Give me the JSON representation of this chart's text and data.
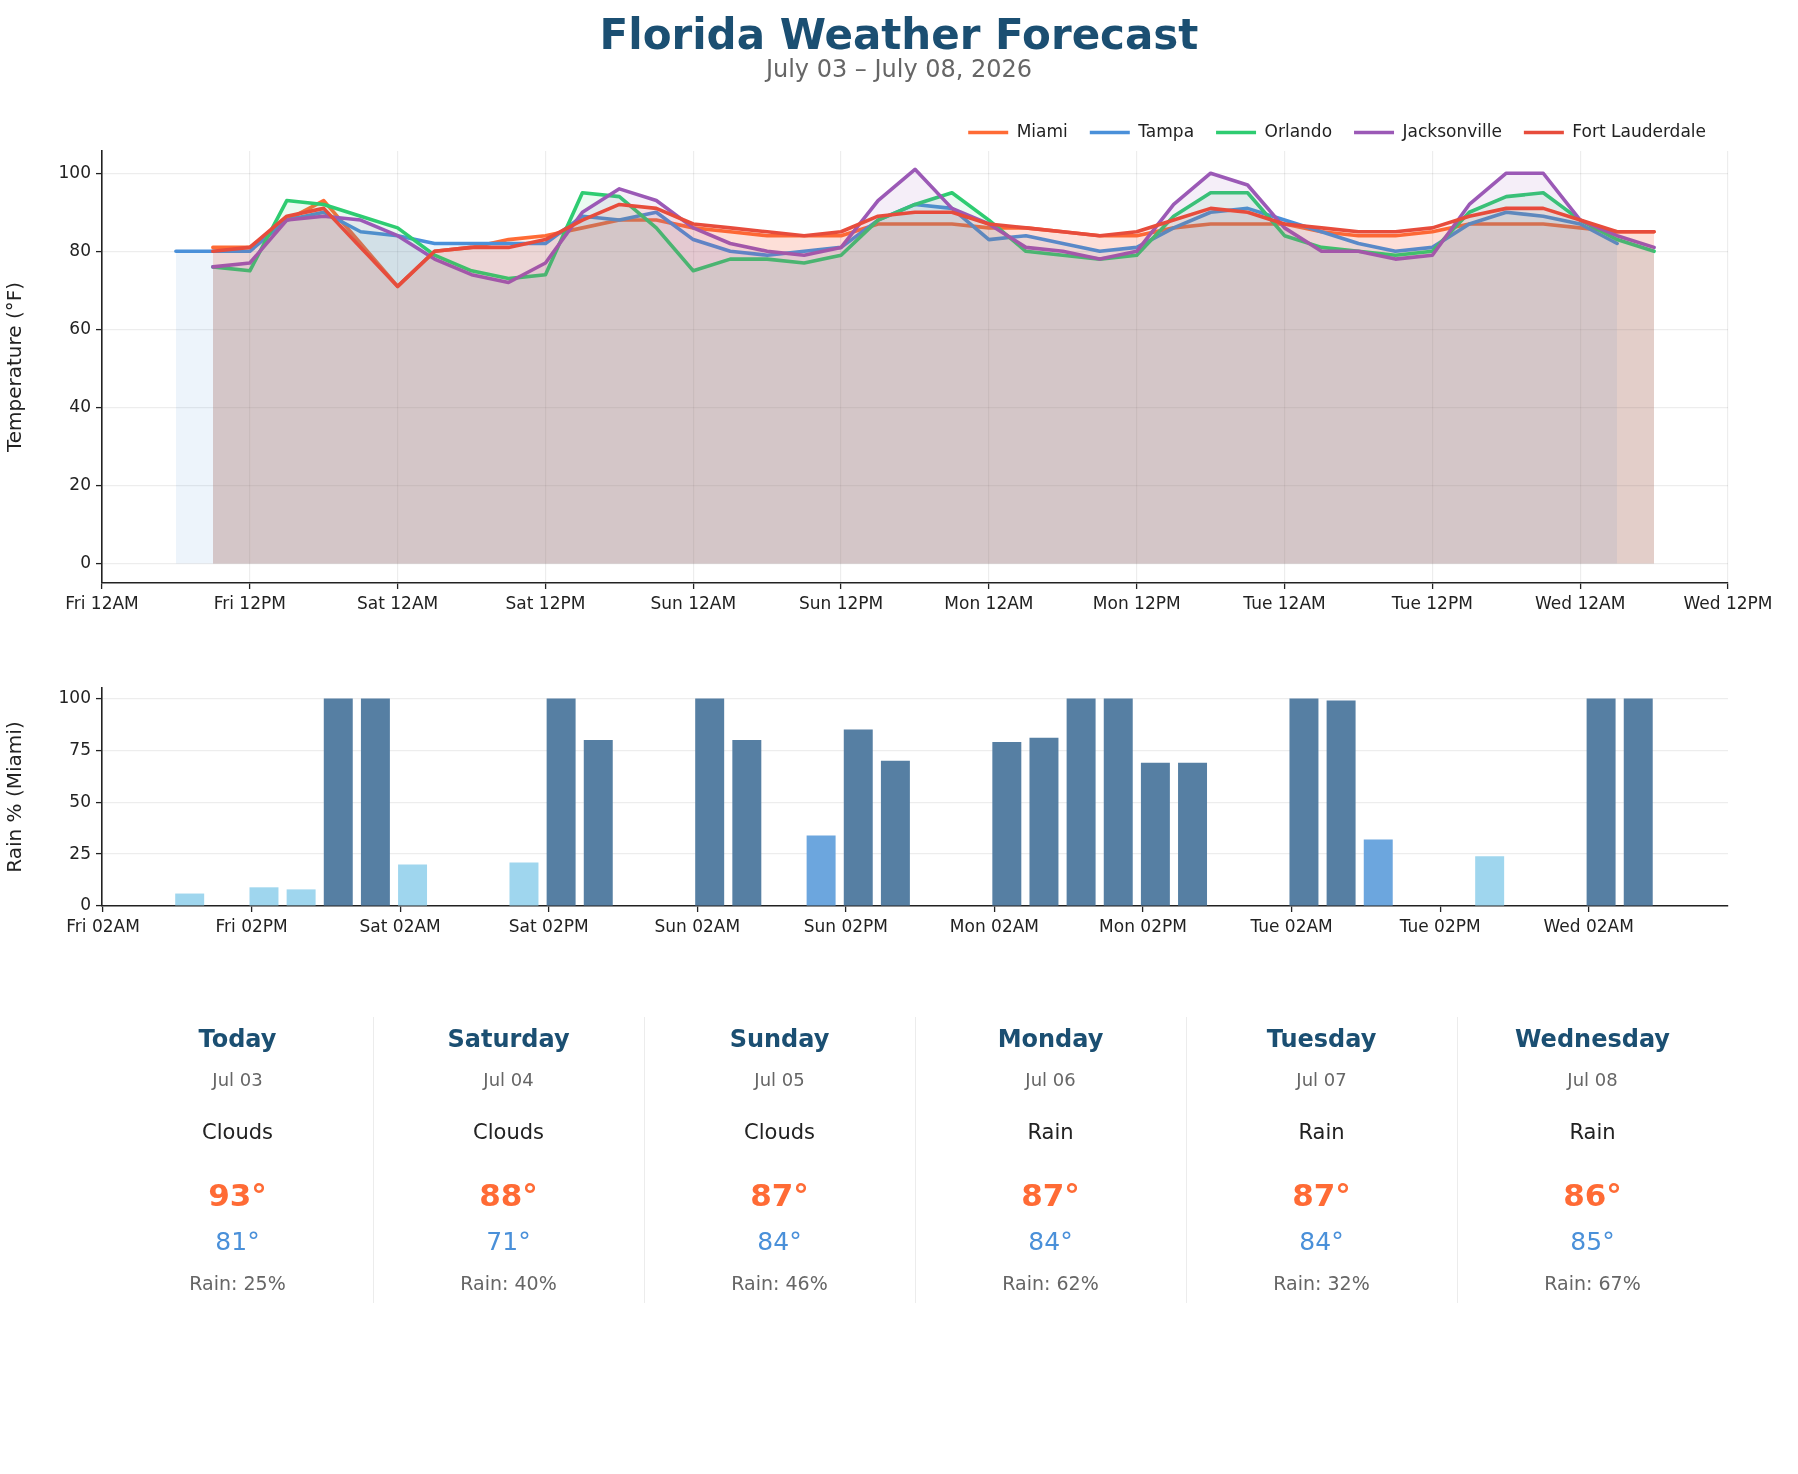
{
  "chart_data": [
    {
      "type": "area",
      "title": "Florida Weather Forecast",
      "subtitle": "July 03 – July 08, 2026",
      "ylabel": "Temperature (°F)",
      "x": [
        "2026-07-03T09:00",
        "2026-07-03T12:00",
        "2026-07-03T15:00",
        "2026-07-03T18:00",
        "2026-07-03T21:00",
        "2026-07-04T00:00",
        "2026-07-04T03:00",
        "2026-07-04T06:00",
        "2026-07-04T09:00",
        "2026-07-04T12:00",
        "2026-07-04T15:00",
        "2026-07-04T18:00",
        "2026-07-04T21:00",
        "2026-07-05T00:00",
        "2026-07-05T03:00",
        "2026-07-05T06:00",
        "2026-07-05T09:00",
        "2026-07-05T12:00",
        "2026-07-05T15:00",
        "2026-07-05T18:00",
        "2026-07-05T21:00",
        "2026-07-06T00:00",
        "2026-07-06T03:00",
        "2026-07-06T06:00",
        "2026-07-06T09:00",
        "2026-07-06T12:00",
        "2026-07-06T15:00",
        "2026-07-06T18:00",
        "2026-07-06T21:00",
        "2026-07-07T00:00",
        "2026-07-07T03:00",
        "2026-07-07T06:00",
        "2026-07-07T09:00",
        "2026-07-07T12:00",
        "2026-07-07T15:00",
        "2026-07-07T18:00",
        "2026-07-07T21:00",
        "2026-07-08T00:00",
        "2026-07-08T03:00",
        "2026-07-08T06:00"
      ],
      "series": [
        {
          "name": "Miami",
          "color": "#ff6b35",
          "values": [
            81,
            81,
            88,
            93,
            82,
            71,
            80,
            81,
            83,
            84,
            86,
            88,
            88,
            86,
            85,
            84,
            84,
            84,
            87,
            87,
            87,
            86,
            86,
            85,
            84,
            84,
            86,
            87,
            87,
            87,
            85,
            84,
            84,
            85,
            87,
            87,
            87,
            86,
            85,
            85
          ]
        },
        {
          "name": "Tampa",
          "color": "#4a90d9",
          "x": [
            "2026-07-03T06:00",
            "2026-07-03T09:00",
            "2026-07-03T12:00",
            "2026-07-03T15:00",
            "2026-07-03T18:00",
            "2026-07-03T21:00",
            "2026-07-04T00:00",
            "2026-07-04T03:00",
            "2026-07-04T06:00",
            "2026-07-04T09:00",
            "2026-07-04T12:00",
            "2026-07-04T15:00",
            "2026-07-04T18:00",
            "2026-07-04T21:00",
            "2026-07-05T00:00",
            "2026-07-05T03:00",
            "2026-07-05T06:00",
            "2026-07-05T09:00",
            "2026-07-05T12:00",
            "2026-07-05T15:00",
            "2026-07-05T18:00",
            "2026-07-05T21:00",
            "2026-07-06T00:00",
            "2026-07-06T03:00",
            "2026-07-06T06:00",
            "2026-07-06T09:00",
            "2026-07-06T12:00",
            "2026-07-06T15:00",
            "2026-07-06T18:00",
            "2026-07-06T21:00",
            "2026-07-07T00:00",
            "2026-07-07T03:00",
            "2026-07-07T06:00",
            "2026-07-07T09:00",
            "2026-07-07T12:00",
            "2026-07-07T15:00",
            "2026-07-07T18:00",
            "2026-07-07T21:00",
            "2026-07-08T00:00",
            "2026-07-08T03:00"
          ],
          "values": [
            80,
            80,
            80,
            88,
            90,
            85,
            84,
            82,
            82,
            82,
            82,
            89,
            88,
            90,
            83,
            80,
            79,
            80,
            81,
            88,
            92,
            91,
            83,
            84,
            82,
            80,
            81,
            86,
            90,
            91,
            88,
            85,
            82,
            80,
            81,
            87,
            90,
            89,
            87,
            82
          ]
        },
        {
          "name": "Orlando",
          "color": "#2ecc71",
          "values": [
            76,
            75,
            93,
            92,
            89,
            86,
            79,
            75,
            73,
            74,
            95,
            94,
            86,
            75,
            78,
            78,
            77,
            79,
            88,
            92,
            95,
            88,
            80,
            79,
            78,
            79,
            89,
            95,
            95,
            84,
            81,
            80,
            79,
            80,
            90,
            94,
            95,
            88,
            83,
            80
          ]
        },
        {
          "name": "Jacksonville",
          "color": "#9b59b6",
          "values": [
            76,
            77,
            88,
            89,
            88,
            84,
            78,
            74,
            72,
            77,
            90,
            96,
            93,
            86,
            82,
            80,
            79,
            81,
            93,
            101,
            91,
            87,
            81,
            80,
            78,
            80,
            92,
            100,
            97,
            86,
            80,
            80,
            78,
            79,
            92,
            100,
            100,
            88,
            84,
            81
          ]
        },
        {
          "name": "Fort Lauderdale",
          "color": "#e74c3c",
          "values": [
            80,
            81,
            89,
            91,
            81,
            71,
            80,
            81,
            81,
            83,
            88,
            92,
            91,
            87,
            86,
            85,
            84,
            85,
            89,
            90,
            90,
            87,
            86,
            85,
            84,
            85,
            88,
            91,
            90,
            87,
            86,
            85,
            85,
            86,
            89,
            91,
            91,
            88,
            85,
            85
          ]
        }
      ],
      "xlim": [
        "2026-07-03T00:00",
        "2026-07-08T12:00"
      ],
      "xticks": [
        {
          "value": "2026-07-03T00:00",
          "label": "Fri 12AM"
        },
        {
          "value": "2026-07-03T12:00",
          "label": "Fri 12PM"
        },
        {
          "value": "2026-07-04T00:00",
          "label": "Sat 12AM"
        },
        {
          "value": "2026-07-04T12:00",
          "label": "Sat 12PM"
        },
        {
          "value": "2026-07-05T00:00",
          "label": "Sun 12AM"
        },
        {
          "value": "2026-07-05T12:00",
          "label": "Sun 12PM"
        },
        {
          "value": "2026-07-06T00:00",
          "label": "Mon 12AM"
        },
        {
          "value": "2026-07-06T12:00",
          "label": "Mon 12PM"
        },
        {
          "value": "2026-07-07T00:00",
          "label": "Tue 12AM"
        },
        {
          "value": "2026-07-07T12:00",
          "label": "Tue 12PM"
        },
        {
          "value": "2026-07-08T00:00",
          "label": "Wed 12AM"
        },
        {
          "value": "2026-07-08T12:00",
          "label": "Wed 12PM"
        }
      ],
      "ylim": [
        -5,
        105.7
      ],
      "yticks": [
        0,
        20,
        40,
        60,
        80,
        100
      ],
      "grid": true,
      "legend": "top right"
    },
    {
      "type": "bar",
      "ylabel": "Rain % (Miami)",
      "x": [
        "2026-07-03T09:00",
        "2026-07-03T15:00",
        "2026-07-03T18:00",
        "2026-07-03T21:00",
        "2026-07-04T00:00",
        "2026-07-04T03:00",
        "2026-07-04T12:00",
        "2026-07-04T15:00",
        "2026-07-04T18:00",
        "2026-07-05T03:00",
        "2026-07-05T06:00",
        "2026-07-05T12:00",
        "2026-07-05T15:00",
        "2026-07-05T18:00",
        "2026-07-06T03:00",
        "2026-07-06T06:00",
        "2026-07-06T09:00",
        "2026-07-06T12:00",
        "2026-07-06T15:00",
        "2026-07-06T18:00",
        "2026-07-07T03:00",
        "2026-07-07T06:00",
        "2026-07-07T09:00",
        "2026-07-07T18:00",
        "2026-07-08T03:00",
        "2026-07-08T06:00"
      ],
      "values": [
        6,
        9,
        8,
        100,
        100,
        20,
        21,
        100,
        80,
        100,
        80,
        34,
        85,
        70,
        79,
        81,
        100,
        100,
        69,
        69,
        100,
        99,
        32,
        24,
        100,
        100
      ],
      "colors": [
        "#9fd6ee",
        "#9fd6ee",
        "#9fd6ee",
        "#567fa3",
        "#567fa3",
        "#9fd6ee",
        "#9fd6ee",
        "#567fa3",
        "#567fa3",
        "#567fa3",
        "#567fa3",
        "#6ca6de",
        "#567fa3",
        "#567fa3",
        "#567fa3",
        "#567fa3",
        "#567fa3",
        "#567fa3",
        "#567fa3",
        "#567fa3",
        "#567fa3",
        "#567fa3",
        "#6ca6de",
        "#9fd6ee",
        "#567fa3",
        "#567fa3"
      ],
      "xlim": [
        "2026-07-03T01:55",
        "2026-07-08T13:15"
      ],
      "xticks": [
        {
          "value": "2026-07-03T02:00",
          "label": "Fri 02AM"
        },
        {
          "value": "2026-07-03T14:00",
          "label": "Fri 02PM"
        },
        {
          "value": "2026-07-04T02:00",
          "label": "Sat 02AM"
        },
        {
          "value": "2026-07-04T14:00",
          "label": "Sat 02PM"
        },
        {
          "value": "2026-07-05T02:00",
          "label": "Sun 02AM"
        },
        {
          "value": "2026-07-05T14:00",
          "label": "Sun 02PM"
        },
        {
          "value": "2026-07-06T02:00",
          "label": "Mon 02AM"
        },
        {
          "value": "2026-07-06T14:00",
          "label": "Mon 02PM"
        },
        {
          "value": "2026-07-07T02:00",
          "label": "Tue 02AM"
        },
        {
          "value": "2026-07-07T14:00",
          "label": "Tue 02PM"
        },
        {
          "value": "2026-07-08T02:00",
          "label": "Wed 02AM"
        }
      ],
      "ylim": [
        0,
        105
      ],
      "yticks": [
        0,
        25,
        50,
        75,
        100
      ],
      "grid": "y"
    },
    {
      "type": "other",
      "categories": [
        "Today",
        "Saturday",
        "Sunday",
        "Monday",
        "Tuesday",
        "Wednesday"
      ],
      "annotations": [
        "Jul 03",
        "Clouds",
        "93°",
        "81°",
        "Rain: 25%",
        "Jul 04",
        "Clouds",
        "88°",
        "71°",
        "Rain: 40%",
        "Jul 05",
        "Clouds",
        "87°",
        "84°",
        "Rain: 46%",
        "Jul 06",
        "Rain",
        "87°",
        "84°",
        "Rain: 62%",
        "Jul 07",
        "Rain",
        "87°",
        "84°",
        "Rain: 32%",
        "Jul 08",
        "Rain",
        "86°",
        "85°",
        "Rain: 67%"
      ]
    }
  ]
}
